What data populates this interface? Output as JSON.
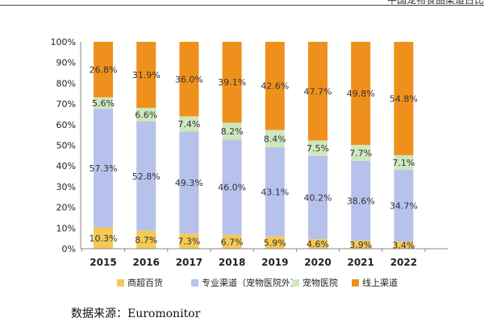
{
  "header": {
    "cut_text": "中国宠物食品渠道占比"
  },
  "chart_data": {
    "type": "bar",
    "stacked": true,
    "percent_stacked": true,
    "categories": [
      "2015",
      "2016",
      "2017",
      "2018",
      "2019",
      "2020",
      "2021",
      "2022"
    ],
    "series": [
      {
        "name": "商超百货",
        "values": [
          10.3,
          8.7,
          7.3,
          6.7,
          5.9,
          4.6,
          3.9,
          3.4
        ],
        "labels": [
          "10.3%",
          "8.7%",
          "7.3%",
          "6.7%",
          "5.9%",
          "4.6%",
          "3.9%",
          "3.4%"
        ],
        "color": "#f5c955"
      },
      {
        "name": "专业渠道（宠物医院外）",
        "values": [
          57.3,
          52.8,
          49.3,
          46.0,
          43.1,
          40.2,
          38.6,
          34.7
        ],
        "labels": [
          "57.3%",
          "52.8%",
          "49.3%",
          "46.0%",
          "43.1%",
          "40.2%",
          "38.6%",
          "34.7%"
        ],
        "color": "#b6c2ec"
      },
      {
        "name": "宠物医院",
        "values": [
          5.6,
          6.6,
          7.4,
          8.2,
          8.4,
          7.5,
          7.7,
          7.1
        ],
        "labels": [
          "5.6%",
          "6.6%",
          "7.4%",
          "8.2%",
          "8.4%",
          "7.5%",
          "7.7%",
          "7.1%"
        ],
        "color": "#cfe7bf"
      },
      {
        "name": "线上渠道",
        "values": [
          26.8,
          31.9,
          36.0,
          39.1,
          42.6,
          47.7,
          49.8,
          54.8
        ],
        "labels": [
          "26.8%",
          "31.9%",
          "36.0%",
          "39.1%",
          "42.6%",
          "47.7%",
          "49.8%",
          "54.8%"
        ],
        "color": "#f0901c"
      }
    ],
    "y_ticks": [
      "0%",
      "10%",
      "20%",
      "30%",
      "40%",
      "50%",
      "60%",
      "70%",
      "80%",
      "90%",
      "100%"
    ],
    "ylim": [
      0,
      100
    ],
    "legend_position": "bottom",
    "grid": false
  },
  "source": {
    "text": "数据来源：Euromonitor"
  }
}
